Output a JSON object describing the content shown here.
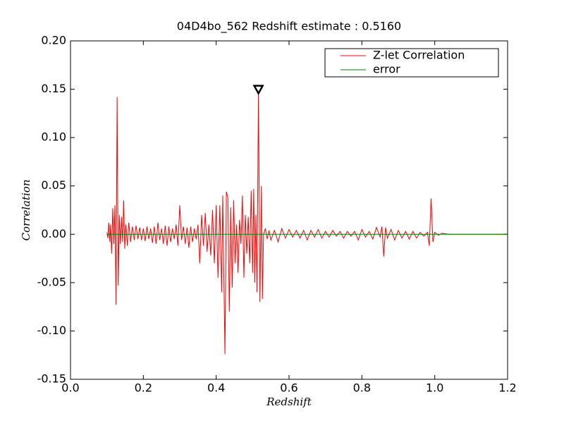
{
  "chart_data": {
    "type": "line",
    "title": "04D4bo_562 Redshift estimate : 0.5160",
    "xlabel": "Redshift",
    "ylabel": "Correlation",
    "xlim": [
      0,
      1.2
    ],
    "ylim": [
      -0.15,
      0.2
    ],
    "xticks": [
      {
        "value": 0,
        "label": "0.0"
      },
      0.2,
      0.4,
      0.6,
      0.8,
      {
        "value": 1,
        "label": "1.0"
      },
      1.2
    ],
    "yticks": [
      {
        "value": -0.15,
        "label": "-0.15"
      },
      {
        "value": -0.1,
        "label": "-0.10"
      },
      {
        "value": -0.05,
        "label": "-0.05"
      },
      {
        "value": 0,
        "label": "0.00"
      },
      {
        "value": 0.05,
        "label": "0.05"
      },
      {
        "value": 0.1,
        "label": "0.10"
      },
      {
        "value": 0.15,
        "label": "0.15"
      },
      {
        "value": 0.2,
        "label": "0.20"
      }
    ],
    "legend": "upper right",
    "marker": {
      "x": 0.516,
      "y": 0.15
    },
    "series": [
      {
        "name": "Z-let Correlation",
        "color": "#ff0000",
        "x": [
          0.1,
          0.103,
          0.105,
          0.108,
          0.11,
          0.113,
          0.116,
          0.119,
          0.122,
          0.125,
          0.128,
          0.131,
          0.134,
          0.137,
          0.14,
          0.143,
          0.146,
          0.149,
          0.152,
          0.156,
          0.16,
          0.165,
          0.17,
          0.175,
          0.18,
          0.185,
          0.19,
          0.195,
          0.2,
          0.205,
          0.21,
          0.215,
          0.22,
          0.225,
          0.23,
          0.235,
          0.24,
          0.245,
          0.25,
          0.255,
          0.26,
          0.265,
          0.27,
          0.275,
          0.28,
          0.285,
          0.29,
          0.295,
          0.3,
          0.305,
          0.31,
          0.315,
          0.32,
          0.325,
          0.33,
          0.335,
          0.34,
          0.345,
          0.35,
          0.355,
          0.36,
          0.365,
          0.37,
          0.375,
          0.38,
          0.385,
          0.39,
          0.395,
          0.4,
          0.405,
          0.41,
          0.415,
          0.418,
          0.424,
          0.428,
          0.432,
          0.436,
          0.44,
          0.444,
          0.448,
          0.452,
          0.456,
          0.46,
          0.464,
          0.468,
          0.472,
          0.476,
          0.48,
          0.484,
          0.488,
          0.492,
          0.496,
          0.5,
          0.503,
          0.506,
          0.509,
          0.512,
          0.516,
          0.52,
          0.524,
          0.527,
          0.53,
          0.535,
          0.54,
          0.545,
          0.55,
          0.56,
          0.57,
          0.58,
          0.59,
          0.6,
          0.61,
          0.62,
          0.63,
          0.64,
          0.65,
          0.66,
          0.67,
          0.68,
          0.69,
          0.7,
          0.71,
          0.72,
          0.73,
          0.74,
          0.75,
          0.76,
          0.77,
          0.78,
          0.79,
          0.8,
          0.81,
          0.82,
          0.83,
          0.84,
          0.85,
          0.855,
          0.86,
          0.865,
          0.87,
          0.88,
          0.89,
          0.9,
          0.91,
          0.92,
          0.93,
          0.94,
          0.95,
          0.96,
          0.97,
          0.98,
          0.985,
          0.99,
          0.995,
          1.0,
          1.01,
          1.02,
          1.04,
          1.06,
          1.1,
          1.2
        ],
        "values": [
          0.002,
          -0.004,
          0.012,
          -0.008,
          0.01,
          -0.02,
          0.027,
          -0.01,
          0.03,
          -0.073,
          0.142,
          -0.053,
          0.02,
          -0.01,
          0.018,
          -0.008,
          0.035,
          -0.015,
          0.01,
          -0.012,
          0.012,
          -0.008,
          0.008,
          -0.006,
          0.009,
          -0.005,
          0.007,
          -0.006,
          0.006,
          -0.007,
          0.008,
          -0.005,
          0.006,
          -0.009,
          0.008,
          -0.01,
          0.012,
          -0.006,
          0.006,
          -0.01,
          0.009,
          -0.012,
          0.008,
          -0.008,
          0.006,
          -0.005,
          0.01,
          -0.012,
          0.03,
          -0.006,
          0.008,
          -0.01,
          0.007,
          -0.014,
          0.008,
          -0.008,
          0.006,
          -0.005,
          0.01,
          -0.03,
          0.02,
          -0.012,
          0.022,
          -0.018,
          0.01,
          -0.022,
          0.025,
          -0.03,
          0.03,
          -0.045,
          0.03,
          -0.06,
          0.04,
          -0.124,
          0.044,
          0.038,
          -0.08,
          0.028,
          -0.055,
          0.035,
          -0.03,
          0.01,
          -0.04,
          0.015,
          -0.01,
          0.04,
          -0.045,
          0.02,
          -0.02,
          0.018,
          -0.03,
          0.045,
          -0.04,
          0.047,
          -0.05,
          0.02,
          -0.06,
          0.148,
          -0.07,
          0.05,
          -0.067,
          0.0,
          0.006,
          -0.005,
          0.004,
          -0.006,
          0.004,
          -0.008,
          0.006,
          -0.004,
          0.005,
          -0.003,
          0.004,
          -0.004,
          0.004,
          -0.006,
          0.004,
          -0.003,
          0.005,
          -0.004,
          0.003,
          -0.003,
          0.004,
          -0.002,
          0.003,
          -0.004,
          0.003,
          -0.002,
          0.003,
          -0.006,
          0.005,
          -0.003,
          0.003,
          -0.005,
          0.007,
          -0.003,
          0.008,
          -0.023,
          0.007,
          -0.004,
          0.005,
          -0.006,
          0.004,
          -0.004,
          0.003,
          -0.005,
          0.003,
          -0.004,
          0.002,
          -0.002,
          0.002,
          -0.012,
          0.037,
          -0.008,
          0.002,
          -0.001,
          0.001,
          0.0,
          0.0,
          0.0,
          0.0
        ]
      },
      {
        "name": "error",
        "color": "#008000",
        "x": [
          0.1,
          1.2
        ],
        "values": [
          0,
          0
        ]
      }
    ]
  }
}
